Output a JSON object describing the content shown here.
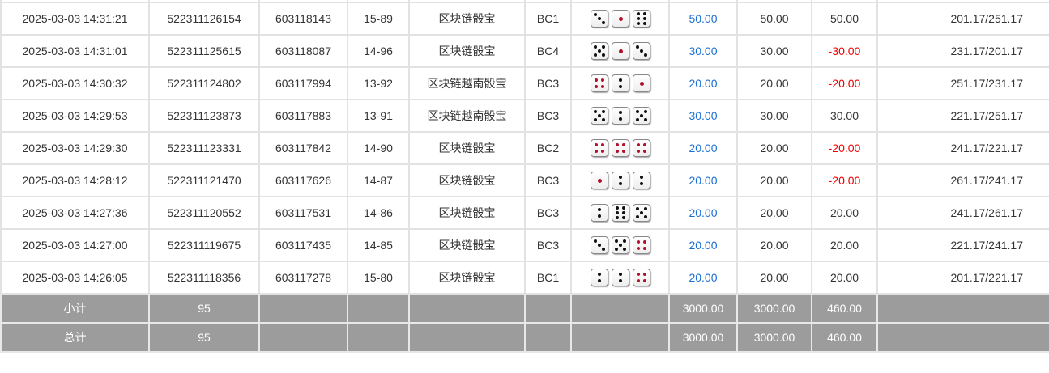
{
  "rows": [
    {
      "time": "2025-03-03 14:31:21",
      "order": "522311126154",
      "issue": "603118143",
      "table": "15-89",
      "game": "区块链骰宝",
      "bet": "BC1",
      "dice": [
        3,
        1,
        6
      ],
      "amount": "50.00",
      "valid": "50.00",
      "win": "50.00",
      "balance": "201.17/251.17"
    },
    {
      "time": "2025-03-03 14:31:01",
      "order": "522311125615",
      "issue": "603118087",
      "table": "14-96",
      "game": "区块链骰宝",
      "bet": "BC4",
      "dice": [
        5,
        1,
        3
      ],
      "amount": "30.00",
      "valid": "30.00",
      "win": "-30.00",
      "balance": "231.17/201.17"
    },
    {
      "time": "2025-03-03 14:30:32",
      "order": "522311124802",
      "issue": "603117994",
      "table": "13-92",
      "game": "区块链越南骰宝",
      "bet": "BC3",
      "dice": [
        4,
        2,
        1
      ],
      "amount": "20.00",
      "valid": "20.00",
      "win": "-20.00",
      "balance": "251.17/231.17"
    },
    {
      "time": "2025-03-03 14:29:53",
      "order": "522311123873",
      "issue": "603117883",
      "table": "13-91",
      "game": "区块链越南骰宝",
      "bet": "BC3",
      "dice": [
        5,
        2,
        5
      ],
      "amount": "30.00",
      "valid": "30.00",
      "win": "30.00",
      "balance": "221.17/251.17"
    },
    {
      "time": "2025-03-03 14:29:30",
      "order": "522311123331",
      "issue": "603117842",
      "table": "14-90",
      "game": "区块链骰宝",
      "bet": "BC2",
      "dice": [
        4,
        4,
        4
      ],
      "amount": "20.00",
      "valid": "20.00",
      "win": "-20.00",
      "balance": "241.17/221.17"
    },
    {
      "time": "2025-03-03 14:28:12",
      "order": "522311121470",
      "issue": "603117626",
      "table": "14-87",
      "game": "区块链骰宝",
      "bet": "BC3",
      "dice": [
        1,
        2,
        2
      ],
      "amount": "20.00",
      "valid": "20.00",
      "win": "-20.00",
      "balance": "261.17/241.17"
    },
    {
      "time": "2025-03-03 14:27:36",
      "order": "522311120552",
      "issue": "603117531",
      "table": "14-86",
      "game": "区块链骰宝",
      "bet": "BC3",
      "dice": [
        2,
        6,
        5
      ],
      "amount": "20.00",
      "valid": "20.00",
      "win": "20.00",
      "balance": "241.17/261.17"
    },
    {
      "time": "2025-03-03 14:27:00",
      "order": "522311119675",
      "issue": "603117435",
      "table": "14-85",
      "game": "区块链骰宝",
      "bet": "BC3",
      "dice": [
        3,
        5,
        4
      ],
      "amount": "20.00",
      "valid": "20.00",
      "win": "20.00",
      "balance": "221.17/241.17"
    },
    {
      "time": "2025-03-03 14:26:05",
      "order": "522311118356",
      "issue": "603117278",
      "table": "15-80",
      "game": "区块链骰宝",
      "bet": "BC1",
      "dice": [
        2,
        2,
        4
      ],
      "amount": "20.00",
      "valid": "20.00",
      "win": "20.00",
      "balance": "201.17/221.17"
    }
  ],
  "subtotal": {
    "label": "小计",
    "count": "95",
    "amount": "3000.00",
    "valid": "3000.00",
    "win": "460.00"
  },
  "total": {
    "label": "总计",
    "count": "95",
    "amount": "3000.00",
    "valid": "3000.00",
    "win": "460.00"
  },
  "colors": {
    "amount": "#1a6fd6",
    "loss": "#e00000",
    "summary_bg": "#9c9c9c"
  }
}
